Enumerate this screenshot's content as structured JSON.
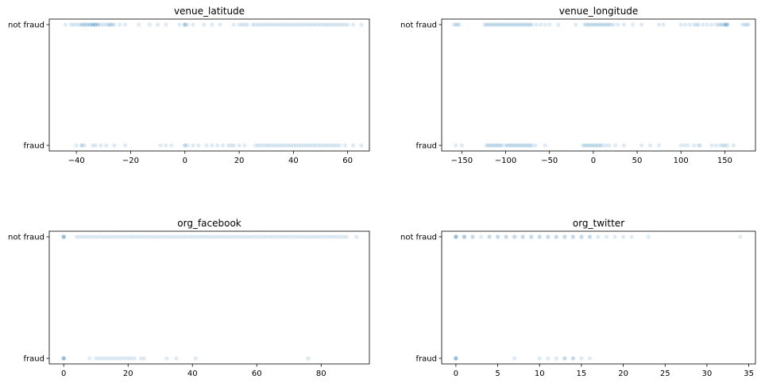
{
  "chart_data": [
    {
      "type": "scatter",
      "title": "venue_latitude",
      "xlim": [
        -50,
        68
      ],
      "xticks": [
        -40,
        -20,
        0,
        20,
        40,
        60
      ],
      "yticks": [
        "not fraud",
        "fraud"
      ],
      "color": "#1f77b4",
      "marker_alpha": 0.15,
      "series": [
        {
          "category": "not fraud",
          "x": [
            -44,
            -42,
            -41,
            -40,
            -39,
            -38,
            -38,
            -37,
            -37,
            -36,
            -36,
            -35,
            -35,
            -34,
            -34,
            -34,
            -33,
            -33,
            -33,
            -32,
            -32,
            -31,
            -30,
            -29,
            -28,
            -28,
            -27,
            -27,
            -26,
            -24,
            -22,
            -17,
            -13,
            -10,
            -7,
            -2,
            0,
            0,
            0,
            1,
            3,
            7,
            10,
            13,
            18,
            20,
            21,
            22,
            23,
            25,
            26,
            27,
            28,
            29,
            30,
            31,
            32,
            33,
            34,
            35,
            36,
            37,
            38,
            39,
            40,
            41,
            42,
            43,
            44,
            45,
            46,
            47,
            48,
            49,
            50,
            51,
            52,
            53,
            54,
            55,
            56,
            57,
            58,
            59,
            60,
            62,
            65
          ]
        },
        {
          "category": "fraud",
          "x": [
            -40,
            -38,
            -38,
            -37,
            -34,
            -33,
            -31,
            -29,
            -26,
            -22,
            -9,
            -7,
            -5,
            0,
            0,
            1,
            3,
            5,
            8,
            10,
            12,
            14,
            16,
            17,
            18,
            20,
            22,
            26,
            27,
            28,
            29,
            30,
            31,
            32,
            33,
            34,
            35,
            36,
            37,
            38,
            39,
            40,
            41,
            42,
            43,
            44,
            45,
            46,
            47,
            48,
            49,
            50,
            51,
            52,
            53,
            54,
            55,
            56,
            57,
            59,
            62,
            65
          ]
        }
      ]
    },
    {
      "type": "scatter",
      "title": "venue_longitude",
      "xlim": [
        -173,
        185
      ],
      "xticks": [
        -150,
        -100,
        -50,
        0,
        50,
        100,
        150
      ],
      "yticks": [
        "not fraud",
        "fraud"
      ],
      "color": "#1f77b4",
      "marker_alpha": 0.15,
      "series": [
        {
          "category": "not fraud",
          "x": [
            -159,
            -157,
            -155,
            -153,
            -124,
            -122,
            -120,
            -118,
            -116,
            -114,
            -112,
            -110,
            -108,
            -106,
            -104,
            -102,
            -100,
            -98,
            -96,
            -94,
            -92,
            -90,
            -88,
            -86,
            -84,
            -82,
            -80,
            -78,
            -76,
            -74,
            -72,
            -70,
            -65,
            -60,
            -55,
            -50,
            -40,
            -20,
            -10,
            -8,
            -6,
            -4,
            -2,
            0,
            2,
            4,
            6,
            8,
            10,
            12,
            14,
            16,
            18,
            20,
            23,
            28,
            35,
            45,
            55,
            75,
            80,
            100,
            105,
            110,
            115,
            118,
            120,
            125,
            130,
            135,
            140,
            143,
            145,
            147,
            149,
            150,
            151,
            152,
            153,
            153,
            170,
            173,
            175,
            177
          ]
        },
        {
          "category": "fraud",
          "x": [
            -157,
            -150,
            -122,
            -120,
            -118,
            -116,
            -114,
            -112,
            -110,
            -108,
            -106,
            -104,
            -100,
            -98,
            -96,
            -94,
            -92,
            -90,
            -88,
            -86,
            -84,
            -82,
            -80,
            -78,
            -76,
            -74,
            -72,
            -70,
            -66,
            -55,
            -12,
            -10,
            -8,
            -6,
            -4,
            -2,
            0,
            2,
            4,
            6,
            8,
            10,
            14,
            18,
            25,
            35,
            55,
            65,
            75,
            100,
            104,
            108,
            115,
            120,
            122,
            135,
            140,
            145,
            148,
            150,
            153,
            160
          ]
        }
      ]
    },
    {
      "type": "scatter",
      "title": "org_facebook",
      "xlim": [
        -4.5,
        95
      ],
      "xticks": [
        0,
        20,
        40,
        60,
        80
      ],
      "yticks": [
        "not fraud",
        "fraud"
      ],
      "color": "#1f77b4",
      "marker_alpha": 0.15,
      "series": [
        {
          "category": "not fraud",
          "x": [
            0,
            0,
            0,
            0,
            4,
            5,
            6,
            7,
            8,
            9,
            10,
            11,
            12,
            13,
            14,
            15,
            16,
            17,
            18,
            19,
            20,
            21,
            22,
            23,
            24,
            25,
            26,
            27,
            28,
            29,
            30,
            31,
            32,
            33,
            34,
            35,
            36,
            37,
            38,
            39,
            40,
            41,
            42,
            43,
            44,
            45,
            46,
            47,
            48,
            49,
            50,
            51,
            52,
            53,
            54,
            55,
            56,
            57,
            58,
            59,
            60,
            61,
            62,
            63,
            64,
            65,
            66,
            67,
            68,
            69,
            70,
            71,
            72,
            73,
            74,
            75,
            76,
            77,
            78,
            79,
            80,
            81,
            82,
            83,
            84,
            85,
            86,
            87,
            88,
            91
          ]
        },
        {
          "category": "fraud",
          "x": [
            0,
            0,
            0,
            0,
            8,
            10,
            11,
            12,
            13,
            14,
            15,
            16,
            17,
            18,
            19,
            20,
            21,
            22,
            24,
            25,
            32,
            35,
            41,
            76
          ]
        }
      ]
    },
    {
      "type": "scatter",
      "title": "org_twitter",
      "xlim": [
        -1.7,
        35.8
      ],
      "xticks": [
        0,
        5,
        10,
        15,
        20,
        25,
        30,
        35
      ],
      "yticks": [
        "not fraud",
        "fraud"
      ],
      "color": "#1f77b4",
      "marker_alpha": 0.15,
      "series": [
        {
          "category": "not fraud",
          "x": [
            0,
            0,
            0,
            0,
            1,
            1,
            1,
            2,
            2,
            3,
            4,
            4,
            5,
            5,
            6,
            6,
            7,
            7,
            8,
            8,
            9,
            9,
            10,
            10,
            11,
            11,
            12,
            12,
            13,
            13,
            14,
            14,
            15,
            15,
            16,
            16,
            17,
            18,
            19,
            20,
            21,
            23,
            34
          ]
        },
        {
          "category": "fraud",
          "x": [
            0,
            0,
            0,
            0,
            7,
            10,
            11,
            12,
            13,
            13,
            14,
            14,
            15,
            16
          ]
        }
      ]
    }
  ]
}
